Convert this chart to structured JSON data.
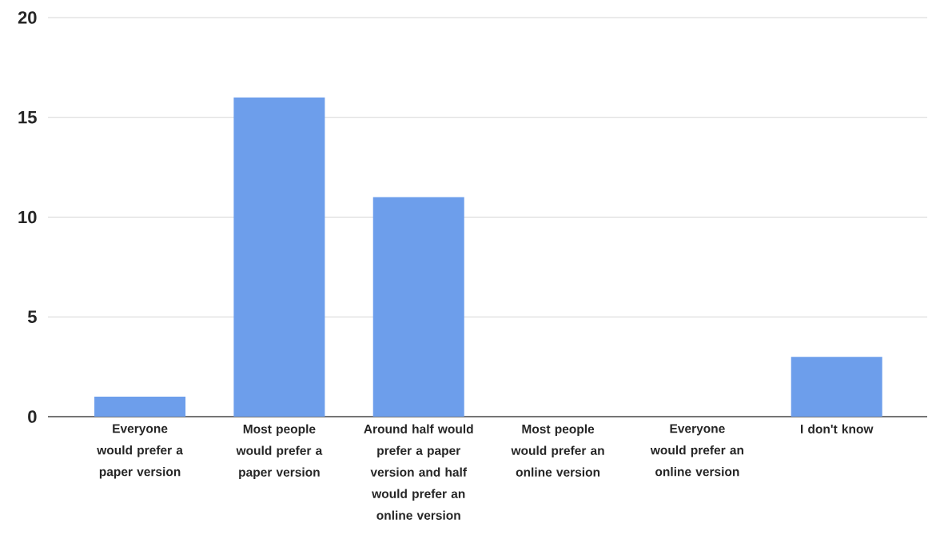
{
  "chart_data": {
    "type": "bar",
    "categories": [
      "Everyone would prefer a paper version",
      "Most people would prefer a paper version",
      "Around half would prefer a paper version and half would prefer an online version",
      "Most people would prefer an online version",
      "Everyone would prefer an online version",
      "I don't know"
    ],
    "values": [
      1,
      16,
      11,
      0,
      0,
      3
    ],
    "color": "#6d9eeb",
    "ylim": [
      0,
      20
    ],
    "yticks": [
      0,
      5,
      10,
      15,
      20
    ],
    "grid": "y"
  }
}
